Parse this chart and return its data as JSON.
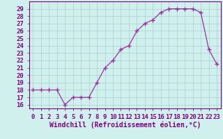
{
  "x": [
    0,
    1,
    2,
    3,
    4,
    5,
    6,
    7,
    8,
    9,
    10,
    11,
    12,
    13,
    14,
    15,
    16,
    17,
    18,
    19,
    20,
    21,
    22,
    23
  ],
  "y": [
    18,
    18,
    18,
    18,
    16,
    17,
    17,
    17,
    19,
    21,
    22,
    23.5,
    24,
    26,
    27,
    27.5,
    28.5,
    29,
    29,
    29,
    29,
    28.5,
    23.5,
    21.5
  ],
  "line_color": "#9b30a0",
  "marker": "D",
  "marker_size": 2.5,
  "bg_color": "#cff0ec",
  "grid_color": "#aacfcf",
  "xlabel": "Windchill (Refroidissement éolien,°C)",
  "ylabel_ticks": [
    16,
    17,
    18,
    19,
    20,
    21,
    22,
    23,
    24,
    25,
    26,
    27,
    28,
    29
  ],
  "ylim": [
    15.5,
    30.0
  ],
  "xlim": [
    -0.5,
    23.5
  ],
  "xtick_labels": [
    "0",
    "1",
    "2",
    "3",
    "4",
    "5",
    "6",
    "7",
    "8",
    "9",
    "10",
    "11",
    "12",
    "13",
    "14",
    "15",
    "16",
    "17",
    "18",
    "19",
    "20",
    "21",
    "22",
    "23"
  ],
  "tick_color": "#800080",
  "axis_color": "#800080",
  "xlabel_color": "#800080",
  "xlabel_fontsize": 7.0,
  "tick_fontsize": 6.5
}
